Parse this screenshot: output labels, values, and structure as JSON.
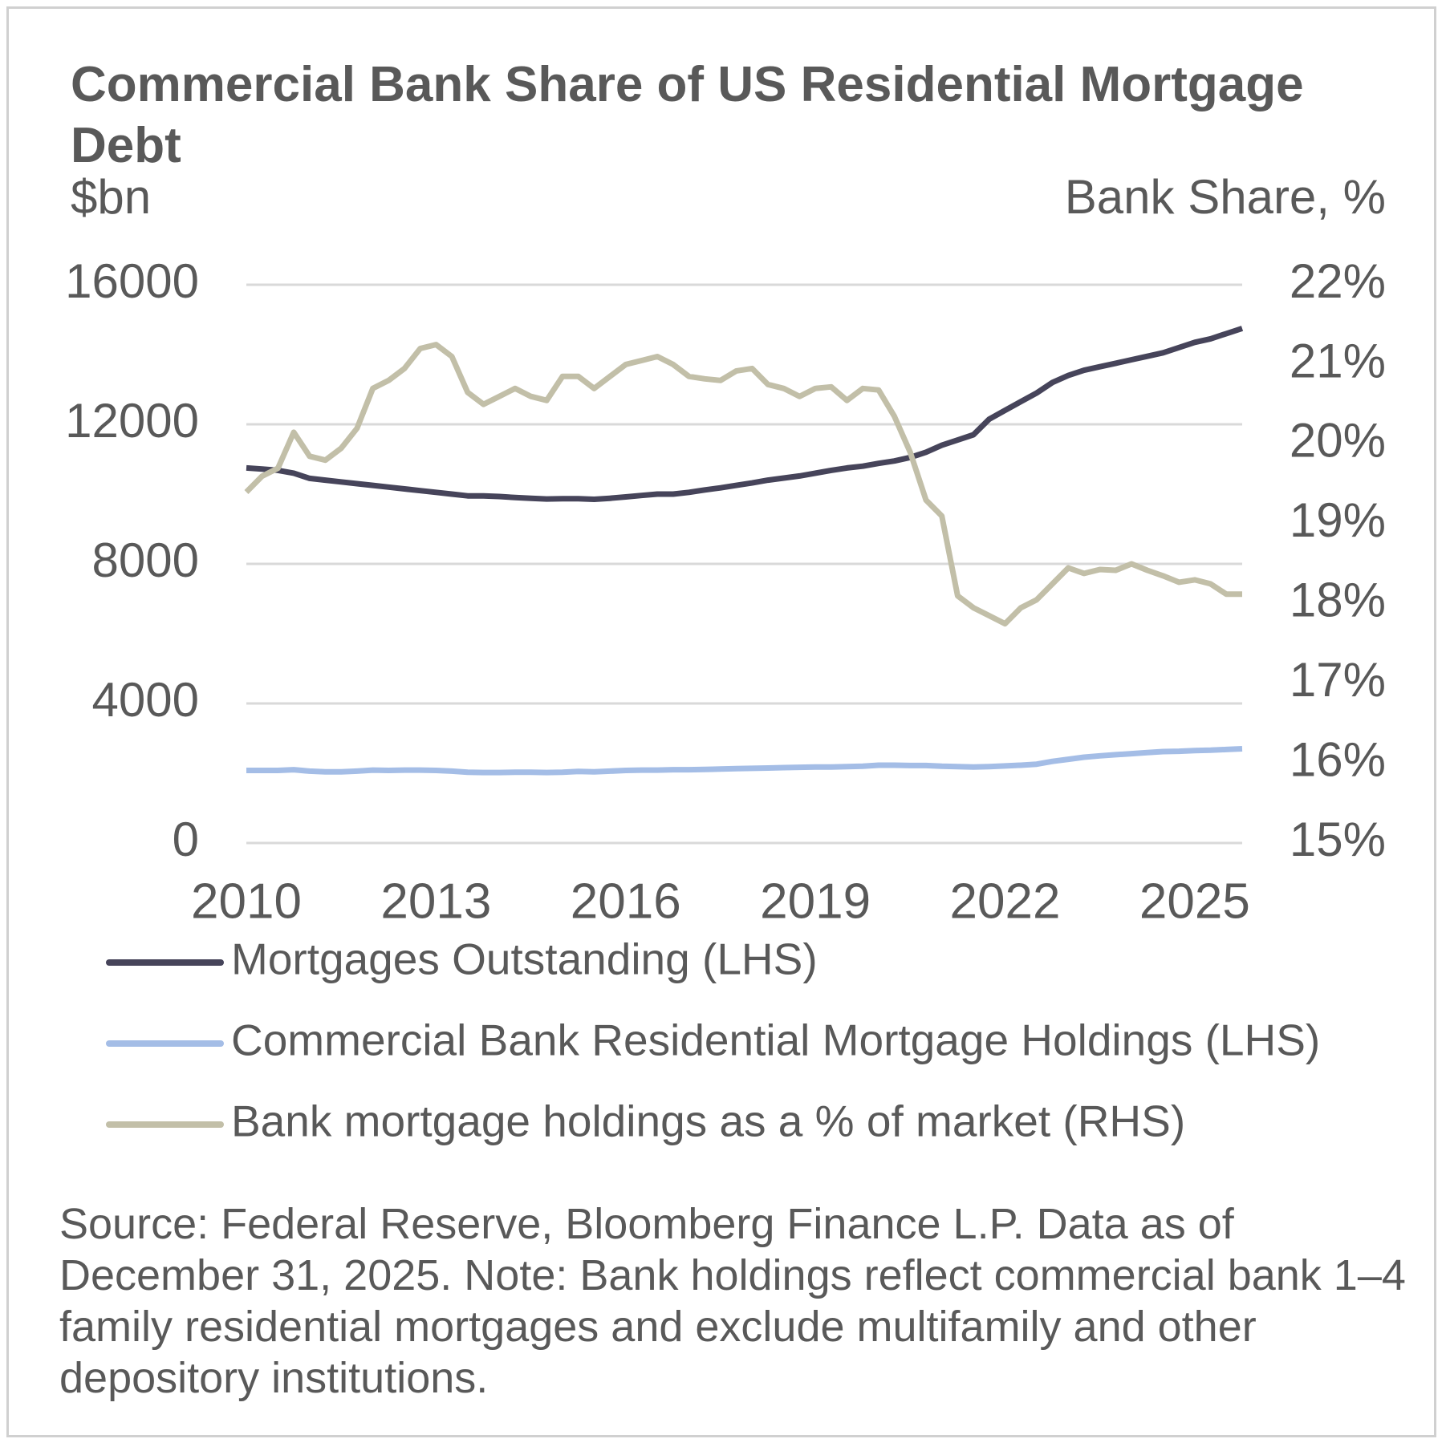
{
  "chart_data": {
    "type": "line",
    "title": "Commercial Bank Share of US Residential Mortgage Debt",
    "y_label": "$bn",
    "y2_label": "Bank Share, %",
    "source": "Source: Federal Reserve, Bloomberg Finance L.P. Data as of December 31, 2025. Note: Bank holdings reflect commercial bank 1–4 family residential mortgages and exclude multifamily and other depository institutions.",
    "x": [
      2010,
      2010.25,
      2010.5,
      2010.75,
      2011,
      2011.25,
      2011.5,
      2011.75,
      2012,
      2012.25,
      2012.5,
      2012.75,
      2013,
      2013.25,
      2013.5,
      2013.75,
      2014,
      2014.25,
      2014.5,
      2014.75,
      2015,
      2015.25,
      2015.5,
      2015.75,
      2016,
      2016.25,
      2016.5,
      2016.75,
      2017,
      2017.25,
      2017.5,
      2017.75,
      2018,
      2018.25,
      2018.5,
      2018.75,
      2019,
      2019.25,
      2019.5,
      2019.75,
      2020,
      2020.25,
      2020.5,
      2020.75,
      2021,
      2021.25,
      2021.5,
      2021.75,
      2022,
      2022.25,
      2022.5,
      2022.75,
      2023,
      2023.25,
      2023.5,
      2023.75,
      2024,
      2024.25,
      2024.5,
      2024.75,
      2025,
      2025.25,
      2025.5,
      2025.75
    ],
    "xlim": [
      2010,
      2025.75
    ],
    "xticks": [
      2010,
      2013,
      2016,
      2019,
      2022,
      2025
    ],
    "ylim": [
      0,
      16000
    ],
    "yticks": [
      0,
      4000,
      8000,
      12000,
      16000
    ],
    "y2lim": [
      15,
      22
    ],
    "y2ticks": [
      {
        "value": 15,
        "label": "15%"
      },
      {
        "value": 16,
        "label": "16%"
      },
      {
        "value": 17,
        "label": "17%"
      },
      {
        "value": 18,
        "label": "18%"
      },
      {
        "value": 19,
        "label": "19%"
      },
      {
        "value": 20,
        "label": "20%"
      },
      {
        "value": 21,
        "label": "21%"
      },
      {
        "value": 22,
        "label": "22%"
      }
    ],
    "grid": true,
    "series": [
      {
        "name": "Mortgages Outstanding (LHS)",
        "color": "#46445a",
        "values": [
          10750,
          10720,
          10680,
          10600,
          10450,
          10400,
          10350,
          10300,
          10250,
          10200,
          10150,
          10100,
          10050,
          10000,
          9950,
          9950,
          9930,
          9900,
          9880,
          9860,
          9870,
          9870,
          9850,
          9880,
          9920,
          9960,
          10000,
          10000,
          10050,
          10120,
          10180,
          10250,
          10320,
          10400,
          10460,
          10520,
          10600,
          10680,
          10750,
          10800,
          10880,
          10950,
          11050,
          11200,
          11400,
          11550,
          11700,
          12150,
          12400,
          12650,
          12900,
          13200,
          13400,
          13550,
          13650,
          13750,
          13850,
          13950,
          14050,
          14200,
          14350,
          14450,
          14600,
          14750
        ]
      },
      {
        "name": "Commercial Bank Residential Mortgage Holdings (LHS)",
        "color": "#a4bde6",
        "values": [
          2080,
          2080,
          2080,
          2100,
          2060,
          2040,
          2040,
          2060,
          2090,
          2080,
          2090,
          2090,
          2080,
          2060,
          2030,
          2020,
          2020,
          2030,
          2030,
          2020,
          2030,
          2050,
          2040,
          2060,
          2080,
          2090,
          2090,
          2100,
          2100,
          2110,
          2120,
          2130,
          2140,
          2150,
          2160,
          2170,
          2180,
          2180,
          2190,
          2200,
          2230,
          2230,
          2220,
          2220,
          2200,
          2190,
          2180,
          2190,
          2210,
          2230,
          2260,
          2340,
          2400,
          2460,
          2500,
          2530,
          2560,
          2590,
          2620,
          2630,
          2650,
          2660,
          2680,
          2700
        ]
      },
      {
        "name": "Bank mortgage holdings as a % of market (RHS)",
        "color": "#c2bfa8",
        "axis": "y2",
        "values": [
          19.4,
          19.6,
          19.7,
          20.15,
          19.85,
          19.8,
          19.95,
          20.2,
          20.7,
          20.8,
          20.95,
          21.2,
          21.25,
          21.1,
          20.65,
          20.5,
          20.6,
          20.7,
          20.6,
          20.55,
          20.85,
          20.85,
          20.7,
          20.85,
          21.0,
          21.05,
          21.1,
          21.0,
          20.85,
          20.82,
          20.8,
          20.92,
          20.95,
          20.75,
          20.7,
          20.6,
          20.7,
          20.72,
          20.55,
          20.7,
          20.68,
          20.35,
          19.9,
          19.3,
          19.1,
          18.1,
          17.95,
          17.85,
          17.75,
          17.95,
          18.05,
          18.25,
          18.45,
          18.38,
          18.43,
          18.42,
          18.5,
          18.42,
          18.35,
          18.27,
          18.3,
          18.25,
          18.12,
          18.12
        ]
      }
    ]
  }
}
